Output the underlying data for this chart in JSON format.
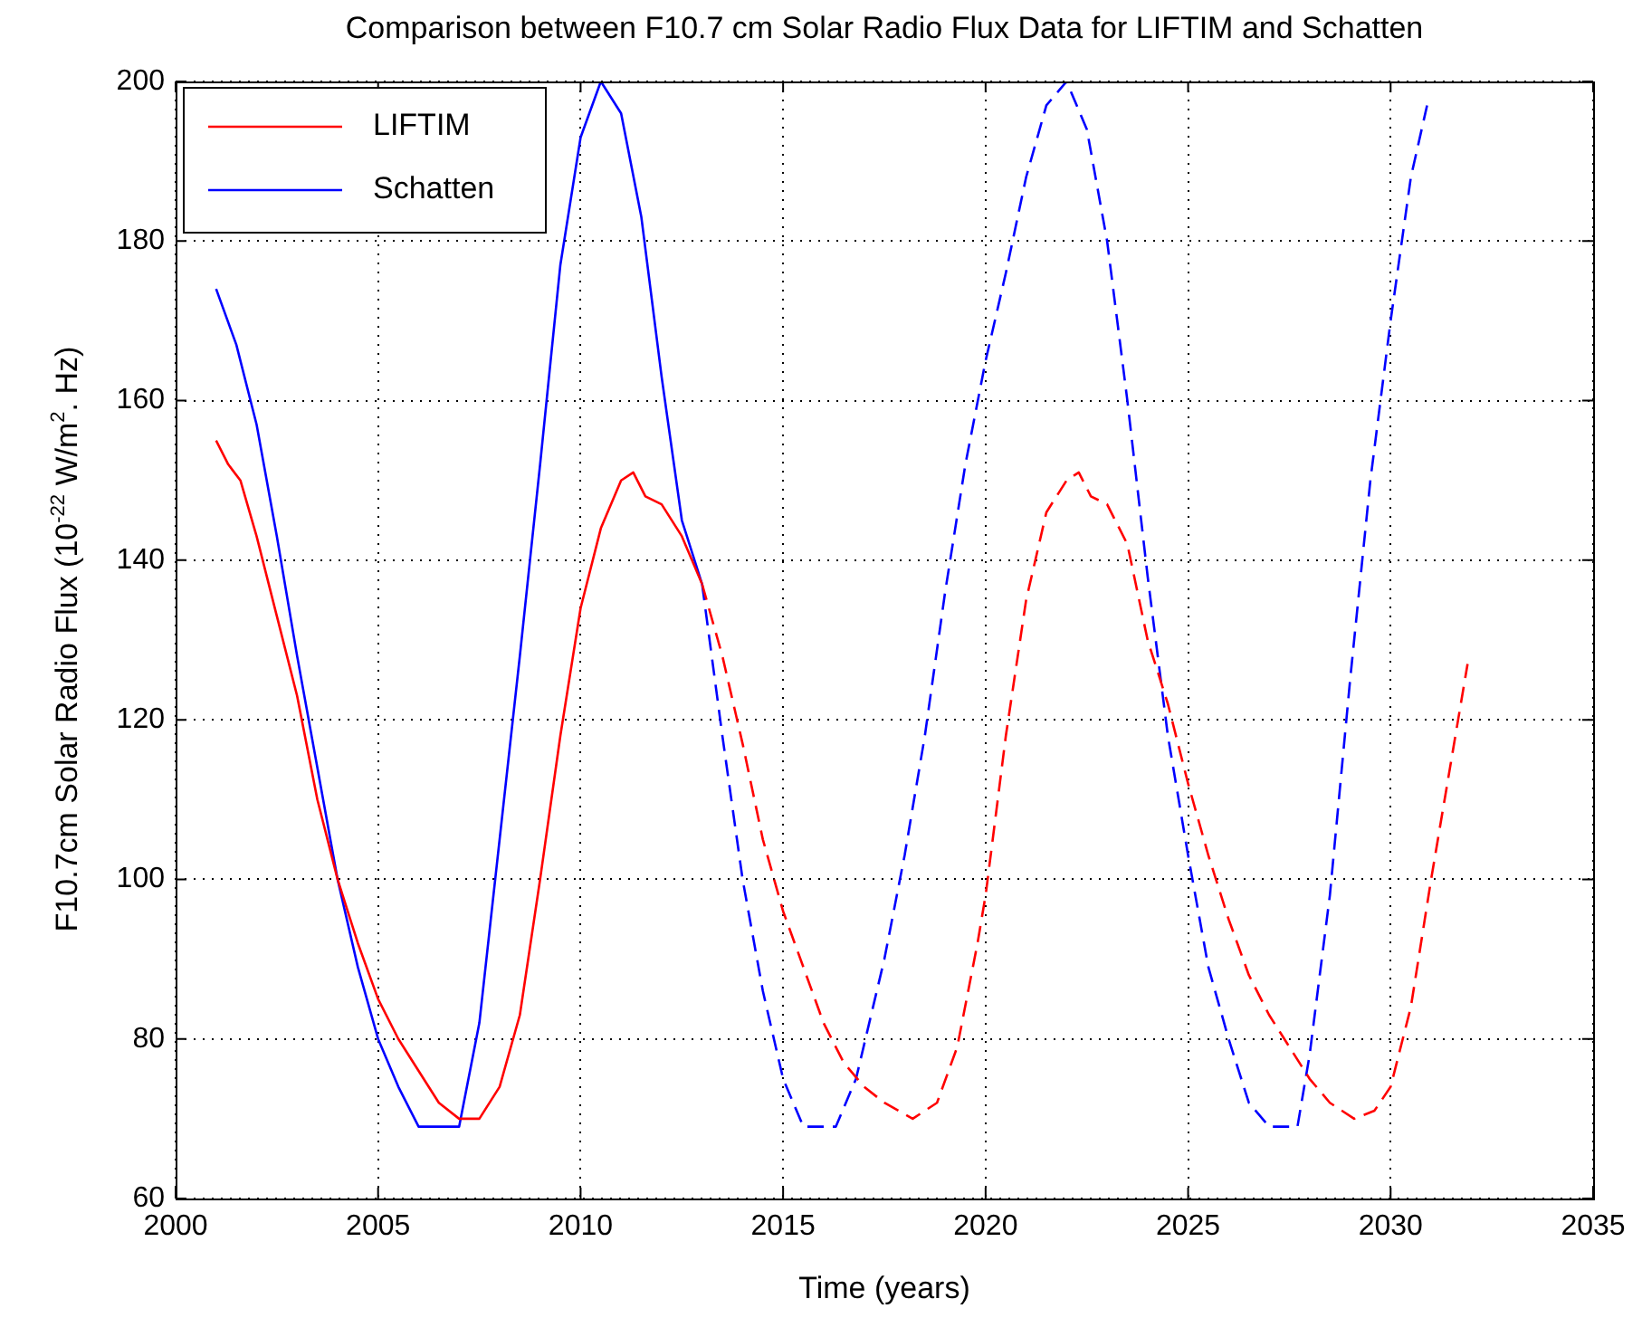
{
  "chart_data": {
    "type": "line",
    "title": "Comparison between F10.7 cm Solar Radio Flux Data for LIFTIM and Schatten",
    "xlabel": "Time (years)",
    "ylabel": "F10.7cm Solar Radio Flux  (10$^{-22}$ W/m$^{2}$. Hz)",
    "xlim": [
      2000,
      2035
    ],
    "xticks": [
      2000,
      2005,
      2010,
      2015,
      2020,
      2025,
      2030,
      2035
    ],
    "ylim": [
      60,
      200
    ],
    "yticks": [
      60,
      80,
      100,
      120,
      140,
      160,
      180,
      200
    ],
    "grid": true,
    "legend": "top left",
    "marker": "none",
    "series": [
      {
        "name": "LIFTIM",
        "color": "#ff0000",
        "line_style": "solid",
        "x": [
          2001,
          2001.3,
          2001.6,
          2002,
          2002.5,
          2003,
          2003.5,
          2004,
          2004.5,
          2005,
          2005.5,
          2006,
          2006.5,
          2007,
          2007.5,
          2008,
          2008.5,
          2009,
          2009.5,
          2010,
          2010.5,
          2011,
          2011.3,
          2011.6,
          2012,
          2012.5,
          2013
        ],
        "values": [
          155,
          152,
          150,
          143,
          133,
          123,
          110,
          100,
          92,
          85,
          80,
          76,
          72,
          70,
          70,
          74,
          83,
          100,
          118,
          134,
          144,
          150,
          151,
          148,
          147,
          143,
          137
        ]
      },
      {
        "name": "Schatten",
        "color": "#0000ff",
        "line_style": "solid",
        "x": [
          2001,
          2001.5,
          2002,
          2002.5,
          2003,
          2003.5,
          2004,
          2004.5,
          2005,
          2005.5,
          2006,
          2007,
          2007.5,
          2008,
          2008.5,
          2009,
          2009.5,
          2010,
          2010.5,
          2011,
          2011.5,
          2012,
          2012.5,
          2013
        ],
        "values": [
          174,
          167,
          157,
          143,
          128,
          114,
          100,
          89,
          80,
          74,
          69,
          69,
          82,
          105,
          128,
          152,
          177,
          193,
          200,
          196,
          183,
          163,
          145,
          137
        ]
      },
      {
        "color": "#ff0000",
        "line_style": "dashed",
        "x": [
          2013,
          2013.5,
          2014,
          2014.5,
          2015,
          2015.5,
          2016,
          2016.5,
          2017,
          2017.5,
          2018.2,
          2018.8,
          2019.3,
          2019.8,
          2020,
          2020.5,
          2021,
          2021.5,
          2022,
          2022.3,
          2022.6,
          2023,
          2023.5,
          2024,
          2024.5,
          2025,
          2025.5,
          2026,
          2026.5,
          2027,
          2027.5,
          2028,
          2028.5,
          2029.1,
          2029.6,
          2030,
          2030.5,
          2031,
          2031.5,
          2031.9
        ],
        "values": [
          137,
          128,
          117,
          105,
          96,
          89,
          82,
          77,
          74,
          72,
          70,
          72,
          79,
          92,
          98,
          118,
          135,
          146,
          150,
          151,
          148,
          147,
          142,
          130,
          122,
          112,
          103,
          95,
          88,
          83,
          79,
          75,
          72,
          70,
          71,
          74,
          84,
          100,
          115,
          127
        ]
      },
      {
        "color": "#0000ff",
        "line_style": "dashed",
        "x": [
          2013,
          2013.5,
          2014,
          2014.5,
          2015,
          2015.5,
          2016.3,
          2016.8,
          2017.5,
          2018,
          2018.5,
          2019,
          2019.5,
          2020,
          2020.5,
          2021,
          2021.5,
          2022,
          2022.5,
          2023,
          2023.5,
          2024,
          2024.5,
          2025,
          2025.5,
          2026,
          2026.5,
          2027,
          2027.7,
          2028,
          2028.5,
          2029,
          2029.5,
          2030,
          2030.5,
          2030.9
        ],
        "values": [
          137,
          118,
          100,
          86,
          75,
          69,
          69,
          75,
          90,
          103,
          118,
          136,
          152,
          165,
          176,
          188,
          197,
          200,
          194,
          180,
          160,
          138,
          118,
          103,
          89,
          80,
          72,
          69,
          69,
          78,
          98,
          125,
          150,
          170,
          188,
          197
        ]
      }
    ]
  }
}
